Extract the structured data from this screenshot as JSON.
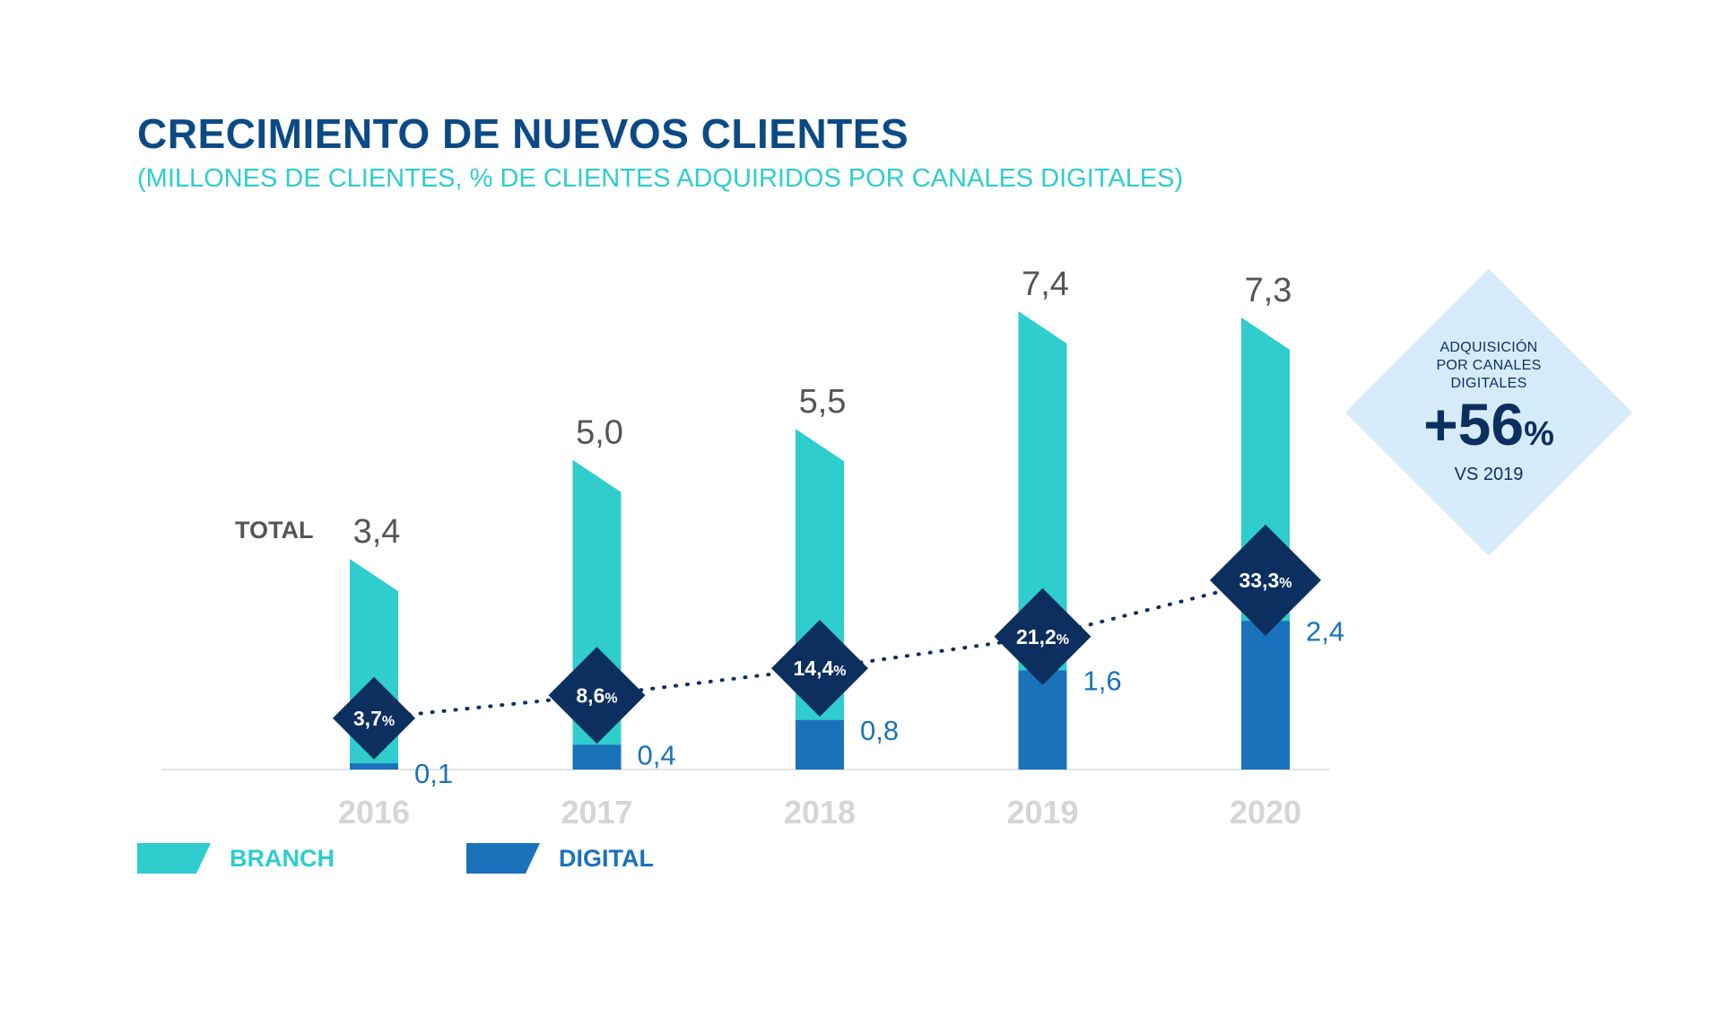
{
  "chart_data": {
    "type": "bar",
    "title": "CRECIMIENTO DE NUEVOS CLIENTES",
    "subtitle": "(MILLONES DE CLIENTES, % DE CLIENTES ADQUIRIDOS POR CANALES DIGITALES)",
    "total_label": "TOTAL",
    "categories": [
      "2016",
      "2017",
      "2018",
      "2019",
      "2020"
    ],
    "totals": [
      3.4,
      5.0,
      5.5,
      7.4,
      7.3
    ],
    "total_labels": [
      "3,4",
      "5,0",
      "5,5",
      "7,4",
      "7,3"
    ],
    "series": [
      {
        "name": "BRANCH",
        "values": [
          3.3,
          4.6,
          4.7,
          5.8,
          4.9
        ],
        "color": "#2fcdcd"
      },
      {
        "name": "DIGITAL",
        "values": [
          0.1,
          0.4,
          0.8,
          1.6,
          2.4
        ],
        "color": "#1a72bb",
        "labels": [
          "0,1",
          "0,4",
          "0,8",
          "1,6",
          "2,4"
        ]
      }
    ],
    "digital_share": {
      "values": [
        3.7,
        8.6,
        14.4,
        21.2,
        33.3
      ],
      "labels": [
        "3,7",
        "8,6",
        "14,4",
        "21,2",
        "33,3"
      ],
      "unit": "%",
      "color": "#0c2f5f"
    },
    "ylim": [
      0,
      8
    ],
    "grid": false,
    "legend_position": "bottom-left"
  },
  "callout": {
    "line1": "ADQUISICIÓN",
    "line2": "POR CANALES",
    "line3": "DIGITALES",
    "value": "+56",
    "unit": "%",
    "comparison": "VS 2019"
  },
  "colors": {
    "title": "#0c4a86",
    "subtitle": "#2fcdcd",
    "axis": "#e2e2e2",
    "year_label": "#d5d5d5",
    "total_value": "#555555",
    "total_label": "#555555",
    "callout_bg": "#d5ebfa"
  }
}
